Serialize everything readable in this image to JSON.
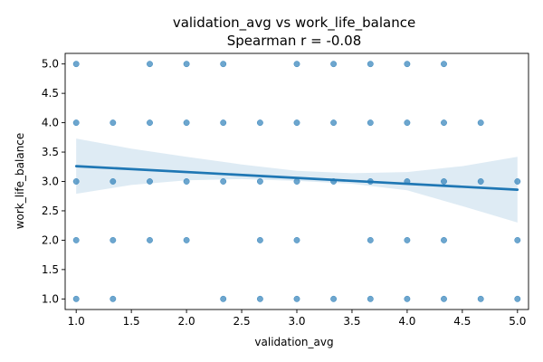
{
  "chart_data": {
    "type": "scatter",
    "title": "validation_avg vs work_life_balance",
    "subtitle": "Spearman r = -0.08",
    "xlabel": "validation_avg",
    "ylabel": "work_life_balance",
    "xlim": [
      0.9,
      5.1
    ],
    "ylim": [
      0.82,
      5.18
    ],
    "x_ticks": [
      "1.0",
      "1.5",
      "2.0",
      "2.5",
      "3.0",
      "3.5",
      "4.0",
      "4.5",
      "5.0"
    ],
    "y_ticks": [
      "1.0",
      "1.5",
      "2.0",
      "2.5",
      "3.0",
      "3.5",
      "4.0",
      "4.5",
      "5.0"
    ],
    "grid": false,
    "color": "#1f77b4",
    "points": [
      [
        1.0,
        5.0
      ],
      [
        1.6667,
        5.0
      ],
      [
        2.0,
        5.0
      ],
      [
        2.3333,
        5.0
      ],
      [
        3.0,
        5.0
      ],
      [
        3.3333,
        5.0
      ],
      [
        3.6667,
        5.0
      ],
      [
        4.0,
        5.0
      ],
      [
        4.3333,
        5.0
      ],
      [
        1.0,
        4.0
      ],
      [
        1.3333,
        4.0
      ],
      [
        1.6667,
        4.0
      ],
      [
        2.0,
        4.0
      ],
      [
        2.3333,
        4.0
      ],
      [
        2.6667,
        4.0
      ],
      [
        3.0,
        4.0
      ],
      [
        3.3333,
        4.0
      ],
      [
        3.6667,
        4.0
      ],
      [
        4.0,
        4.0
      ],
      [
        4.3333,
        4.0
      ],
      [
        4.6667,
        4.0
      ],
      [
        1.0,
        3.0
      ],
      [
        1.3333,
        3.0
      ],
      [
        1.6667,
        3.0
      ],
      [
        2.0,
        3.0
      ],
      [
        2.3333,
        3.0
      ],
      [
        2.6667,
        3.0
      ],
      [
        3.0,
        3.0
      ],
      [
        3.3333,
        3.0
      ],
      [
        3.6667,
        3.0
      ],
      [
        4.0,
        3.0
      ],
      [
        4.3333,
        3.0
      ],
      [
        4.6667,
        3.0
      ],
      [
        5.0,
        3.0
      ],
      [
        1.0,
        2.0
      ],
      [
        1.3333,
        2.0
      ],
      [
        1.6667,
        2.0
      ],
      [
        2.0,
        2.0
      ],
      [
        2.6667,
        2.0
      ],
      [
        3.0,
        2.0
      ],
      [
        3.6667,
        2.0
      ],
      [
        4.0,
        2.0
      ],
      [
        4.3333,
        2.0
      ],
      [
        5.0,
        2.0
      ],
      [
        1.0,
        1.0
      ],
      [
        1.3333,
        1.0
      ],
      [
        2.3333,
        1.0
      ],
      [
        2.6667,
        1.0
      ],
      [
        3.0,
        1.0
      ],
      [
        3.3333,
        1.0
      ],
      [
        3.6667,
        1.0
      ],
      [
        4.0,
        1.0
      ],
      [
        4.3333,
        1.0
      ],
      [
        4.6667,
        1.0
      ],
      [
        5.0,
        1.0
      ]
    ],
    "regression": {
      "x": [
        1.0,
        5.0
      ],
      "y": [
        3.26,
        2.86
      ]
    },
    "ci_band": {
      "x": [
        1.0,
        1.5,
        2.0,
        2.5,
        3.0,
        3.5,
        4.0,
        4.5,
        5.0
      ],
      "upper": [
        3.73,
        3.56,
        3.42,
        3.29,
        3.18,
        3.14,
        3.16,
        3.26,
        3.42
      ],
      "lower": [
        2.79,
        2.94,
        3.02,
        3.04,
        3.01,
        2.96,
        2.85,
        2.58,
        2.3
      ]
    }
  }
}
